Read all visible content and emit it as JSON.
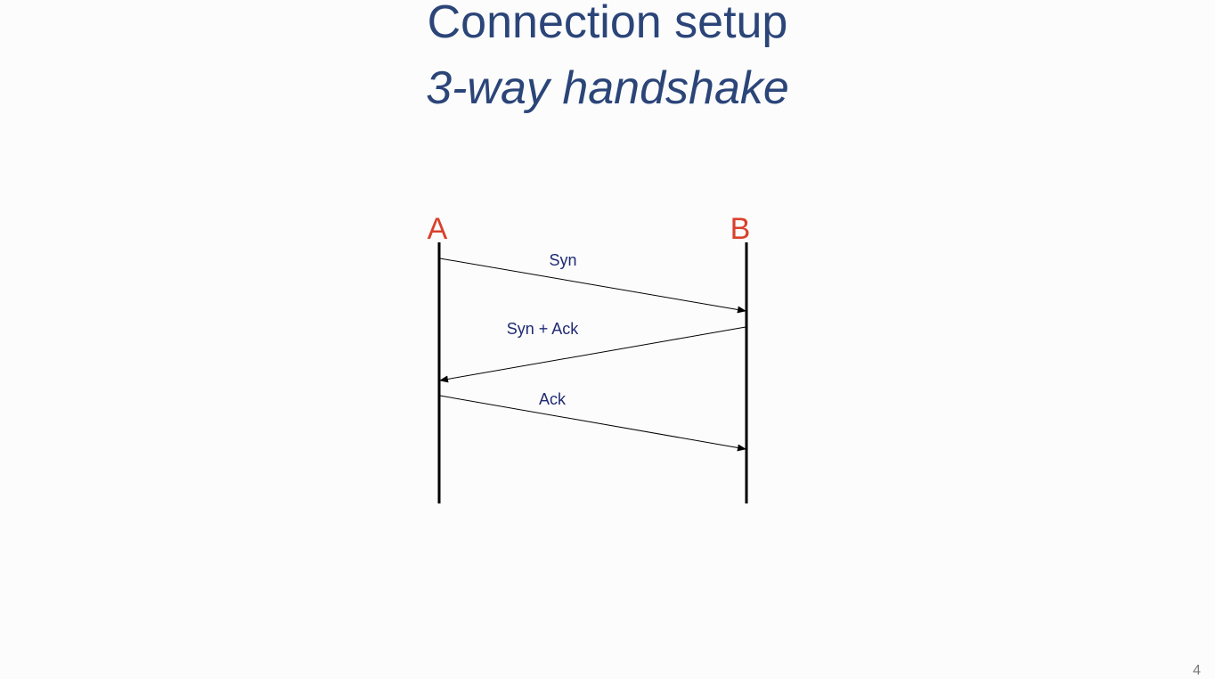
{
  "slide": {
    "title": "Connection setup",
    "subtitle": "3-way handshake",
    "page_number": "4"
  },
  "diagram": {
    "party_a": "A",
    "party_b": "B",
    "messages": [
      {
        "label": "Syn",
        "from": "A",
        "to": "B"
      },
      {
        "label": "Syn + Ack",
        "from": "B",
        "to": "A"
      },
      {
        "label": "Ack",
        "from": "A",
        "to": "B"
      }
    ]
  },
  "colors": {
    "title": "#2b4579",
    "party_label": "#d9412b",
    "message_label": "#1f2a74",
    "line": "#000000",
    "background": "#fcfcfc"
  }
}
